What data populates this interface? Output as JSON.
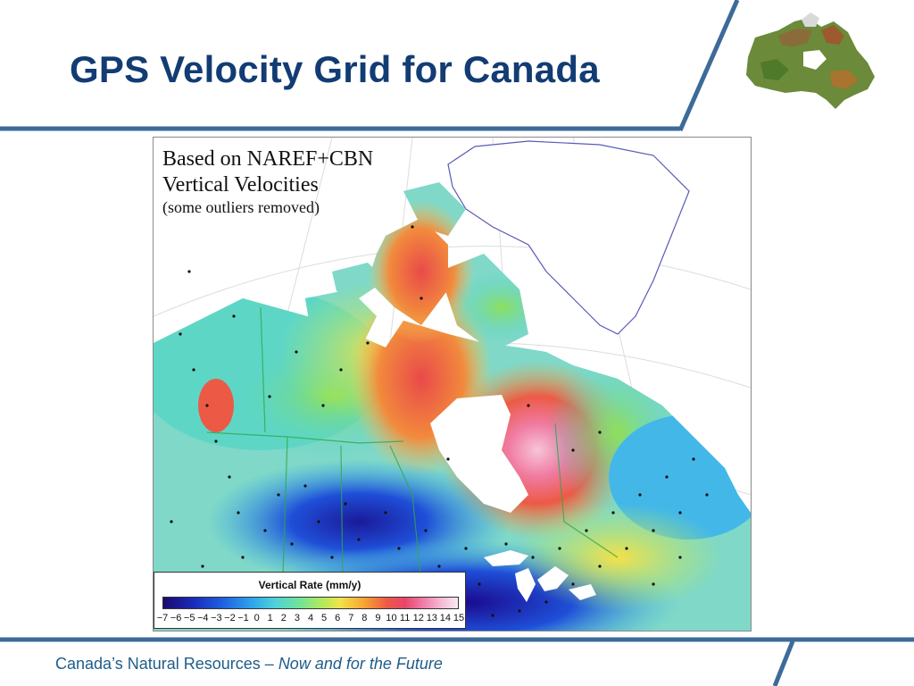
{
  "slide": {
    "title": "GPS Velocity Grid for Canada",
    "footer": {
      "org": "Canada’s Natural Resources – ",
      "tagline": "Now and for the Future"
    },
    "colors": {
      "title": "#123c73",
      "rule": "#3d6b99",
      "footer_text": "#1f5c8a"
    }
  },
  "logo": {
    "icon": "canada-map-icon"
  },
  "map": {
    "annotation": {
      "line1": "Based on NAREF+CBN",
      "line2": "Vertical Velocities",
      "line3": "(some outliers removed)"
    },
    "legend": {
      "title": "Vertical Rate (mm/y)",
      "ticks": [
        "−7",
        "−6",
        "−5",
        "−4",
        "−3",
        "−2",
        "−1",
        "0",
        "1",
        "2",
        "3",
        "4",
        "5",
        "6",
        "7",
        "8",
        "9",
        "10",
        "11",
        "12",
        "13",
        "14",
        "15"
      ],
      "range": [
        -7,
        15
      ]
    }
  }
}
